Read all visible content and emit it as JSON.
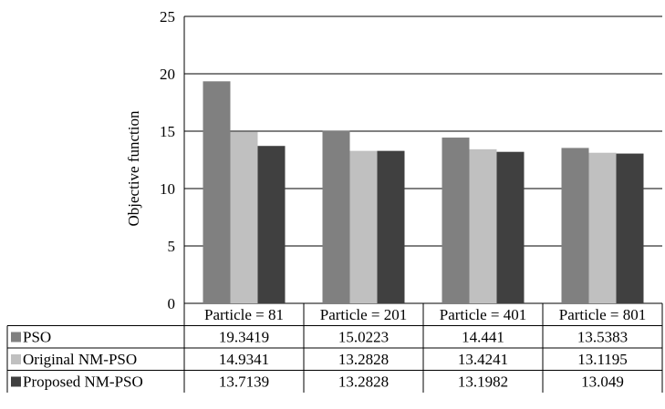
{
  "chart_data": {
    "type": "bar",
    "ylabel": "Objective function",
    "ylim": [
      0,
      25
    ],
    "yticks": [
      0,
      5,
      10,
      15,
      20,
      25
    ],
    "grid": true,
    "legend": "data-table-left",
    "categories": [
      "Particle = 81",
      "Particle = 201",
      "Particle = 401",
      "Particle = 801"
    ],
    "series": [
      {
        "name": "PSO",
        "color": "#808080",
        "values": [
          19.3419,
          15.0223,
          14.441,
          13.5383
        ],
        "labels": [
          "19.3419",
          "15.0223",
          "14.441",
          "13.5383"
        ]
      },
      {
        "name": "Original NM-PSO",
        "color": "#c0c0c0",
        "values": [
          14.9341,
          13.2828,
          13.4241,
          13.1195
        ],
        "labels": [
          "14.9341",
          "13.2828",
          "13.4241",
          "13.1195"
        ]
      },
      {
        "name": "Proposed NM-PSO",
        "color": "#404040",
        "values": [
          13.7139,
          13.2828,
          13.1982,
          13.049
        ],
        "labels": [
          "13.7139",
          "13.2828",
          "13.1982",
          "13.049"
        ]
      }
    ]
  }
}
